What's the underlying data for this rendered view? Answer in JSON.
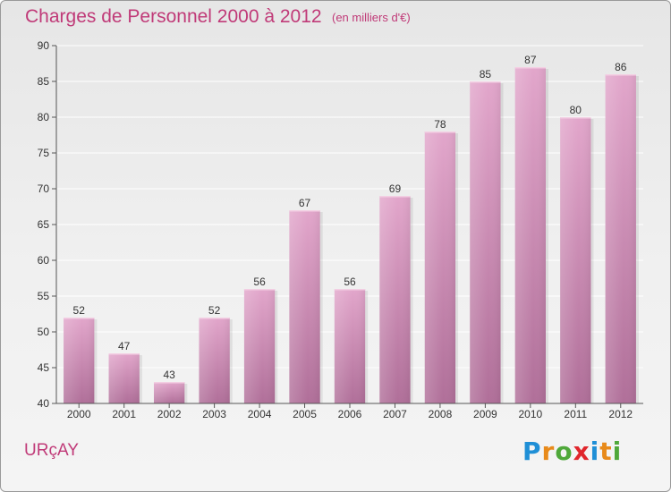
{
  "header": {
    "title": "Charges de Personnel 2000 à 2012",
    "subtitle": "(en milliers d'€)"
  },
  "footer": {
    "place": "URçAY",
    "brand_letters": [
      {
        "ch": "P",
        "color": "#1f8fd6"
      },
      {
        "ch": "r",
        "color": "#e88a1a"
      },
      {
        "ch": "o",
        "color": "#4fa83a"
      },
      {
        "ch": "x",
        "color": "#e0262c"
      },
      {
        "ch": "i",
        "color": "#1f8fd6"
      },
      {
        "ch": "t",
        "color": "#e88a1a"
      },
      {
        "ch": "i",
        "color": "#4fa83a"
      }
    ]
  },
  "chart_data": {
    "type": "bar",
    "categories": [
      "2000",
      "2001",
      "2002",
      "2003",
      "2004",
      "2005",
      "2006",
      "2007",
      "2008",
      "2009",
      "2010",
      "2011",
      "2012"
    ],
    "values": [
      52,
      47,
      43,
      52,
      56,
      67,
      56,
      69,
      78,
      85,
      87,
      80,
      86
    ],
    "ylim": [
      40,
      90
    ],
    "yticks": [
      40,
      45,
      50,
      55,
      60,
      65,
      70,
      75,
      80,
      85,
      90
    ],
    "grid": true,
    "bar_color_top": "#e2a6cb",
    "bar_color_bottom": "#b06f99",
    "grid_color": "#ffffff"
  }
}
